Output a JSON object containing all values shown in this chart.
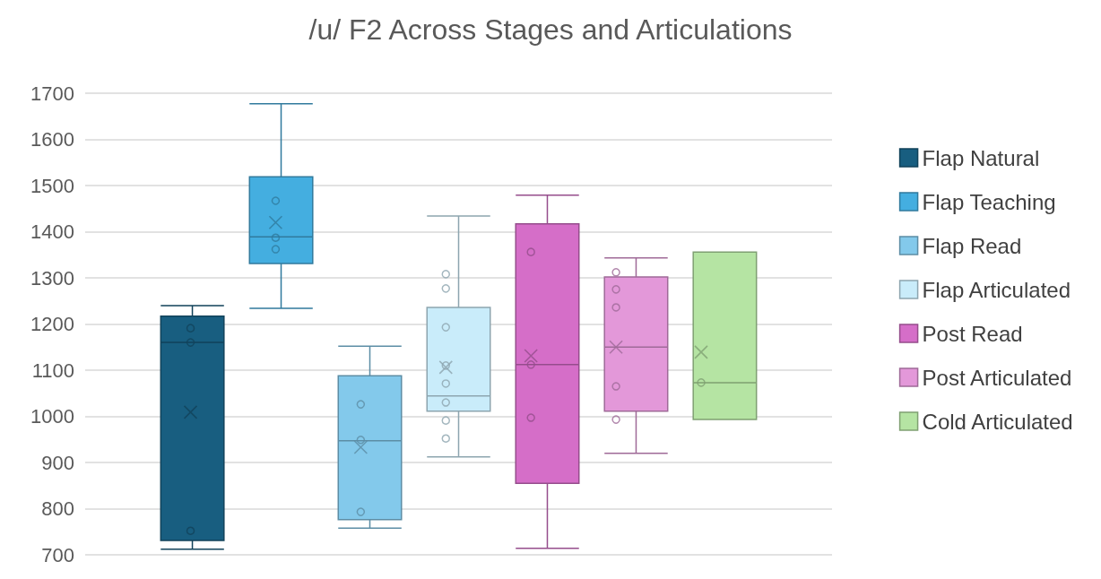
{
  "chart_data": {
    "type": "box",
    "title": "/u/ F2 Across Stages and Articulations",
    "categories": [
      null
    ],
    "series": [
      {
        "name": "Flap Natural",
        "color": "#185e80",
        "boxes": [
          {
            "low": 712,
            "q1": 731,
            "median": 1160,
            "q3": 1217,
            "high": 1240,
            "mean": 1009,
            "outliers": [
              1191,
              1160,
              752
            ]
          }
        ]
      },
      {
        "name": "Flap Teaching",
        "color": "#44aee0",
        "boxes": [
          {
            "low": 1234,
            "q1": 1331,
            "median": 1389,
            "q3": 1519,
            "high": 1677,
            "mean": 1420,
            "outliers": [
              1467,
              1387,
              1362
            ]
          }
        ]
      },
      {
        "name": "Flap Read",
        "color": "#83c9eb",
        "boxes": [
          {
            "low": 758,
            "q1": 776,
            "median": 947,
            "q3": 1088,
            "high": 1152,
            "mean": 933,
            "outliers": [
              1026,
              949,
              793
            ]
          }
        ]
      },
      {
        "name": "Flap Articulated",
        "color": "#c9ecfa",
        "boxes": [
          {
            "low": 912,
            "q1": 1011,
            "median": 1044,
            "q3": 1236,
            "high": 1434,
            "mean": 1106,
            "outliers": [
              1308,
              1277,
              1193,
              1110,
              1071,
              1030,
              991,
              952
            ]
          }
        ]
      },
      {
        "name": "Post Read",
        "color": "#d56ec8",
        "boxes": [
          {
            "low": 714,
            "q1": 855,
            "median": 1112,
            "q3": 1417,
            "high": 1479,
            "mean": 1131,
            "outliers": [
              1356,
              1112,
              997
            ]
          }
        ]
      },
      {
        "name": "Post Articulated",
        "color": "#e398d9",
        "boxes": [
          {
            "low": 920,
            "q1": 1011,
            "median": 1150,
            "q3": 1302,
            "high": 1343,
            "mean": 1150,
            "outliers": [
              1312,
              1275,
              1236,
              1065,
              993
            ]
          }
        ]
      },
      {
        "name": "Cold Articulated",
        "color": "#b5e4a3",
        "boxes": [
          {
            "low": 993,
            "q1": 993,
            "median": 1073,
            "q3": 1356,
            "high": 1356,
            "mean": 1139,
            "outliers": [
              1073
            ]
          }
        ]
      }
    ],
    "ylim": [
      700,
      1700
    ],
    "yticks": [
      700,
      800,
      900,
      1000,
      1100,
      1200,
      1300,
      1400,
      1500,
      1600,
      1700
    ],
    "grid": "y",
    "legend": "right"
  }
}
